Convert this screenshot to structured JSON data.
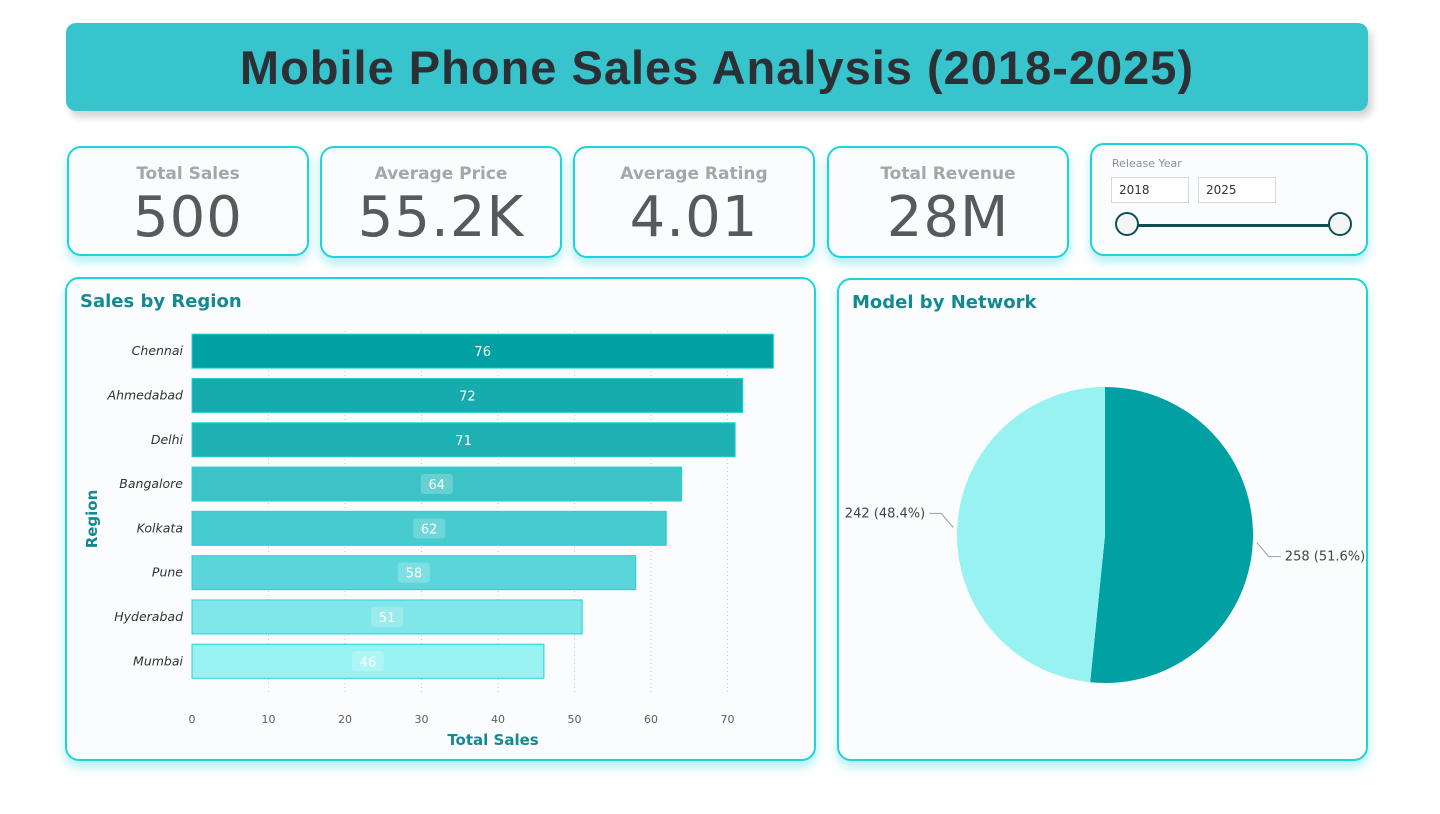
{
  "header": {
    "title": "Mobile Phone Sales Analysis (2018-2025)"
  },
  "kpis": [
    {
      "label": "Total Sales",
      "value": "500"
    },
    {
      "label": "Average Price",
      "value": "55.2K"
    },
    {
      "label": "Average Rating",
      "value": "4.01"
    },
    {
      "label": "Total Revenue",
      "value": "28M"
    }
  ],
  "slicer": {
    "label": "Release Year",
    "from": "2018",
    "to": "2025"
  },
  "colors": {
    "accent": "#1fd3da",
    "title_bg": "#37c4cd",
    "pie_dark": "#00a0a3",
    "pie_light": "#99f2f2"
  },
  "chart_data": [
    {
      "type": "bar",
      "orientation": "horizontal",
      "title": "Sales by Region",
      "xlabel": "Total Sales",
      "ylabel": "Region",
      "categories": [
        "Chennai",
        "Ahmedabad",
        "Delhi",
        "Bangalore",
        "Kolkata",
        "Pune",
        "Hyderabad",
        "Mumbai"
      ],
      "values": [
        76,
        72,
        71,
        64,
        62,
        58,
        51,
        46
      ],
      "xlim": [
        0,
        80
      ],
      "xticks": [
        0,
        10,
        20,
        30,
        40,
        50,
        60,
        70
      ],
      "grid": "vertical dotted",
      "bar_colors": [
        "#00a0a3",
        "#16abae",
        "#1db1b4",
        "#3cc3c6",
        "#46cbce",
        "#5ad6da",
        "#7fe6e9",
        "#99f2f2"
      ]
    },
    {
      "type": "pie",
      "title": "Model by Network",
      "slices": [
        {
          "value": 258,
          "percent": 51.6,
          "label": "258 (51.6%)",
          "color": "#00a0a3"
        },
        {
          "value": 242,
          "percent": 48.4,
          "label": "242 (48.4%)",
          "color": "#99f2f2"
        }
      ]
    }
  ]
}
